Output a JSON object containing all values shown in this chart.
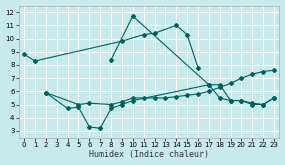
{
  "xlabel": "Humidex (Indice chaleur)",
  "bg_color": "#c8eaea",
  "grid_color": "#ffffff",
  "line_color": "#006060",
  "xlim": [
    -0.5,
    23.5
  ],
  "ylim": [
    2.5,
    12.5
  ],
  "xticks": [
    0,
    1,
    2,
    3,
    4,
    5,
    6,
    7,
    8,
    9,
    10,
    11,
    12,
    13,
    14,
    15,
    16,
    17,
    18,
    19,
    20,
    21,
    22,
    23
  ],
  "yticks": [
    3,
    4,
    5,
    6,
    7,
    8,
    9,
    10,
    11,
    12
  ],
  "series": [
    {
      "x": [
        0,
        1,
        9,
        11,
        12,
        14,
        15,
        16
      ],
      "y": [
        8.8,
        8.3,
        9.8,
        10.3,
        10.4,
        11.0,
        10.3,
        7.8
      ]
    },
    {
      "x": [
        8,
        10,
        17,
        18,
        19,
        20,
        21,
        22,
        23
      ],
      "y": [
        8.4,
        11.7,
        6.5,
        6.5,
        5.3,
        5.3,
        5.0,
        5.0,
        5.5
      ]
    },
    {
      "x": [
        2,
        4,
        5,
        6,
        7,
        8,
        9,
        10,
        17,
        18,
        19,
        20,
        21,
        22,
        23
      ],
      "y": [
        5.9,
        4.7,
        4.8,
        3.3,
        3.2,
        4.7,
        5.0,
        5.3,
        6.5,
        5.5,
        5.3,
        5.3,
        5.1,
        5.0,
        5.5
      ]
    },
    {
      "x": [
        2,
        5,
        6,
        8,
        9,
        10,
        11,
        12,
        13,
        14,
        15,
        16,
        17,
        18,
        19,
        20,
        21,
        22,
        23
      ],
      "y": [
        5.9,
        5.0,
        5.1,
        5.0,
        5.2,
        5.5,
        5.5,
        5.5,
        5.5,
        5.6,
        5.7,
        5.8,
        6.0,
        6.3,
        6.6,
        7.0,
        7.3,
        7.5,
        7.6
      ]
    }
  ]
}
